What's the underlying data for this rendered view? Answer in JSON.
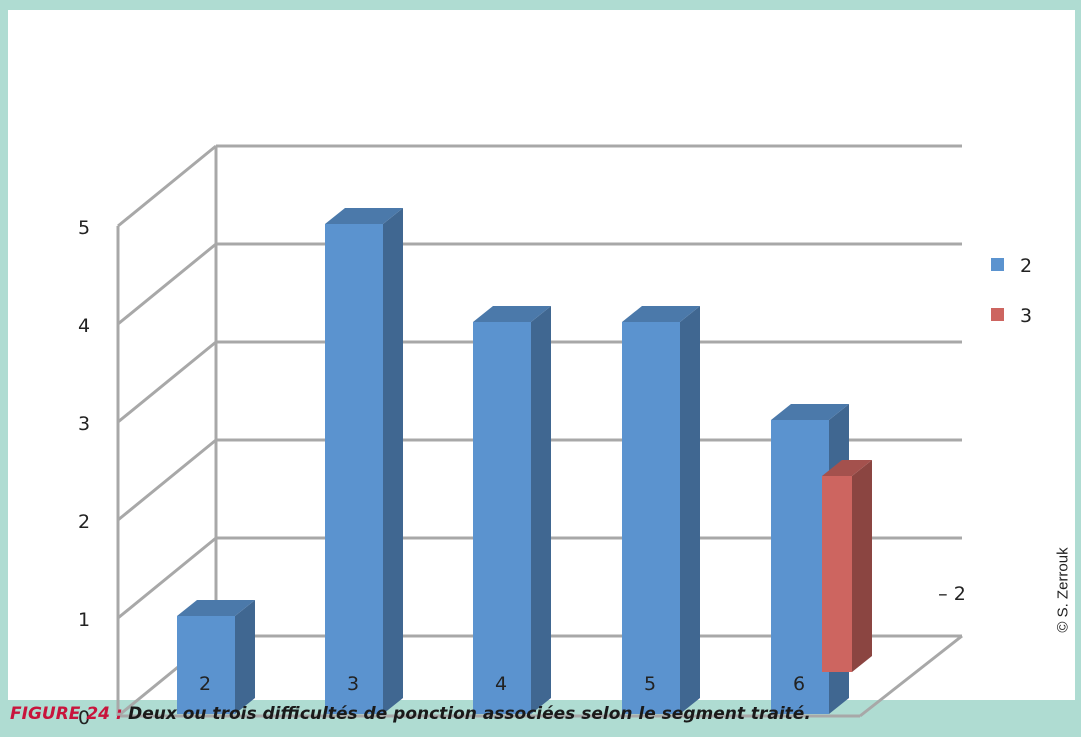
{
  "chart_data": {
    "type": "bar",
    "categories": [
      "2",
      "3",
      "4",
      "5",
      "6"
    ],
    "series": [
      {
        "name": "2",
        "values": [
          1,
          5,
          4,
          4,
          3
        ],
        "color": "#5b93cf"
      },
      {
        "name": "3",
        "values": [
          null,
          null,
          null,
          null,
          2
        ],
        "color": "#cd6560"
      }
    ],
    "depth_label": "– 2",
    "ylim": [
      0,
      5
    ],
    "yticks": [
      "0",
      "1",
      "2",
      "3",
      "4",
      "5"
    ],
    "grid": true,
    "three_d": true,
    "legend": "right"
  },
  "caption": {
    "label": "FIGURE 24 :",
    "text": "Deux ou trois difficultés de ponction associées selon le segment traité."
  },
  "credit": "© S. Zerrouk"
}
